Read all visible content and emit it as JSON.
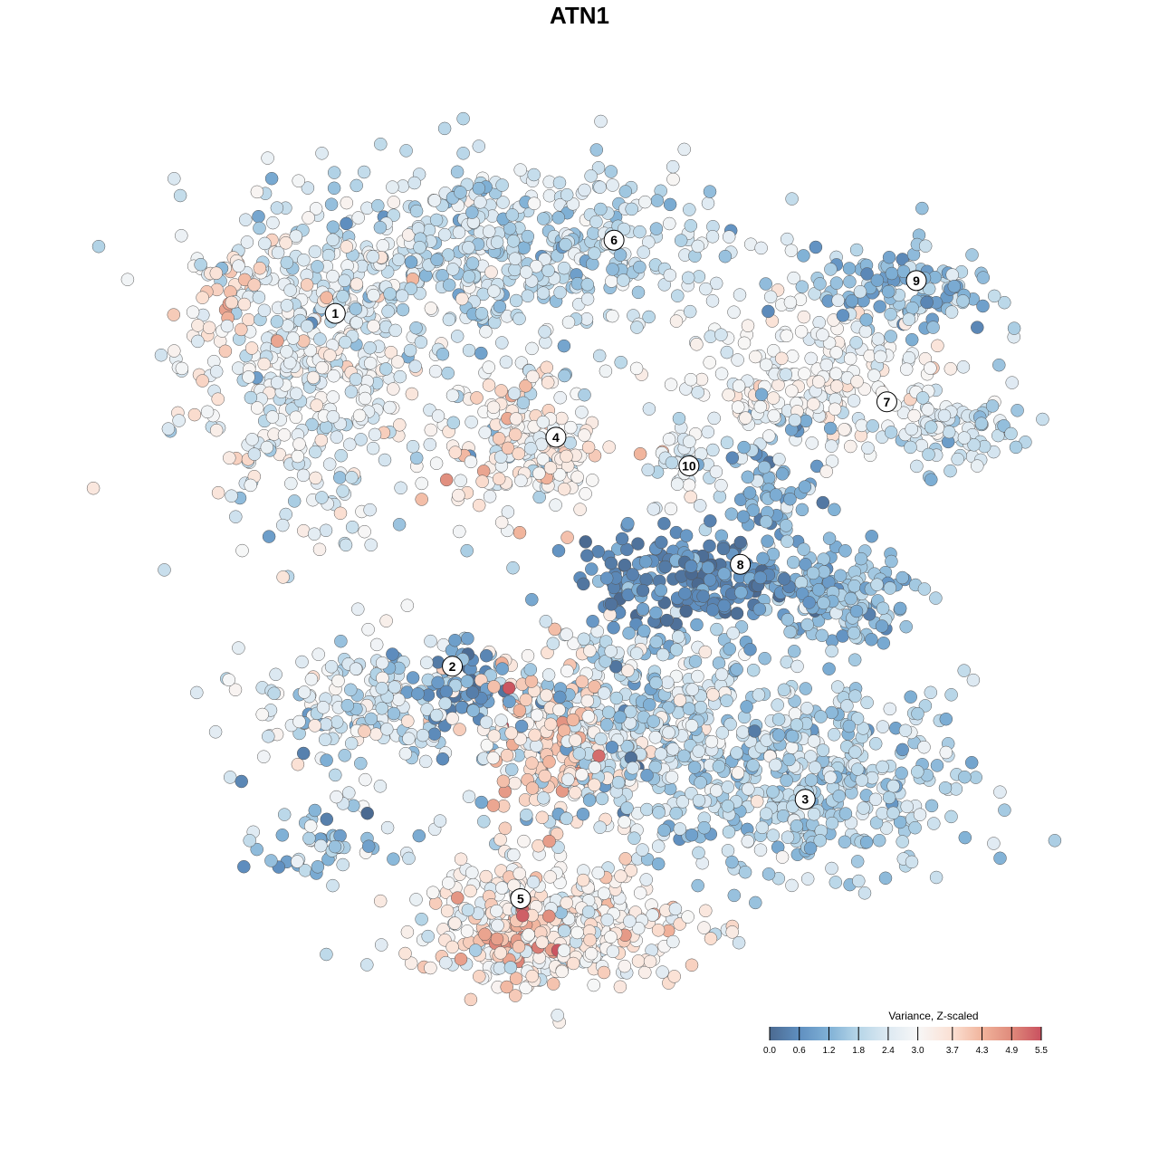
{
  "chart_data": {
    "type": "scatter",
    "title": "ATN1",
    "xlabel": "",
    "ylabel": "",
    "grid": false,
    "xlim": [
      -50,
      50
    ],
    "ylim": [
      -50,
      50
    ],
    "color_variable": "Variance, Z-scaled",
    "legend": {
      "title": "Variance, Z-scaled",
      "placement": "bottom-right",
      "ticks": [
        0.0,
        0.6,
        1.2,
        1.8,
        2.4,
        3.0,
        3.7,
        4.3,
        4.9,
        5.5
      ],
      "tick_labels": [
        "0.0",
        "0.6",
        "1.2",
        "1.8",
        "2.4",
        "3.0",
        "3.7",
        "4.3",
        "4.9",
        "5.5"
      ],
      "colors": [
        "#4b6a91",
        "#5f8fc0",
        "#80b1d6",
        "#b7d6e8",
        "#dde9f2",
        "#f7f7f7",
        "#fbe0d3",
        "#f1b49c",
        "#df8a7b",
        "#c9515f"
      ]
    },
    "point_groups": [
      {
        "cluster": "1",
        "center": [
          -32.3,
          25.8
        ],
        "spread": [
          7.5,
          9.7
        ],
        "n": 450,
        "mean": 2.6,
        "sd": 0.6
      },
      {
        "cluster": "1",
        "center": [
          -42,
          34.4
        ],
        "spread": [
          2.5,
          2.5
        ],
        "n": 25,
        "mean": 3.9,
        "sd": 0.3
      },
      {
        "cluster": "6",
        "center": [
          -8.6,
          38.7
        ],
        "spread": [
          12.9,
          5.4
        ],
        "n": 500,
        "mean": 2.0,
        "sd": 0.5
      },
      {
        "cluster": "4",
        "center": [
          -6.5,
          16.1
        ],
        "spread": [
          4.8,
          4.3
        ],
        "n": 200,
        "mean": 3.0,
        "sd": 0.7
      },
      {
        "cluster": "10",
        "center": [
          12.9,
          13.4
        ],
        "spread": [
          2.2,
          3.2
        ],
        "n": 40,
        "mean": 2.4,
        "sd": 0.4
      },
      {
        "cluster": "7",
        "center": [
          27.9,
          23.7
        ],
        "spread": [
          8.6,
          4.3
        ],
        "n": 220,
        "mean": 2.9,
        "sd": 0.4
      },
      {
        "cluster": "7",
        "center": [
          45,
          17.2
        ],
        "spread": [
          4,
          2.5
        ],
        "n": 80,
        "mean": 2.0,
        "sd": 0.5
      },
      {
        "cluster": "9",
        "center": [
          38.7,
          34.4
        ],
        "spread": [
          5.4,
          2.7
        ],
        "n": 120,
        "mean": 1.4,
        "sd": 0.5
      },
      {
        "cluster": "8",
        "center": [
          12.9,
          0
        ],
        "spread": [
          6.5,
          2.7
        ],
        "n": 200,
        "mean": 0.5,
        "sd": 0.4
      },
      {
        "cluster": "8",
        "center": [
          31.2,
          -2.2
        ],
        "spread": [
          4.3,
          2.7
        ],
        "n": 150,
        "mean": 1.4,
        "sd": 0.4
      },
      {
        "cluster": "8",
        "center": [
          23.7,
          10.8
        ],
        "spread": [
          3.2,
          4.3
        ],
        "n": 80,
        "mean": 1.3,
        "sd": 0.5
      },
      {
        "cluster": "2",
        "center": [
          -25.8,
          -15
        ],
        "spread": [
          6.5,
          4.3
        ],
        "n": 180,
        "mean": 2.3,
        "sd": 0.7
      },
      {
        "cluster": "2",
        "center": [
          -15,
          -12.9
        ],
        "spread": [
          3,
          3
        ],
        "n": 60,
        "mean": 0.7,
        "sd": 0.4
      },
      {
        "cluster": "3",
        "center": [
          27,
          -23.7
        ],
        "spread": [
          9.7,
          5.4
        ],
        "n": 400,
        "mean": 1.8,
        "sd": 0.5
      },
      {
        "cluster": "3",
        "center": [
          6.5,
          -17.2
        ],
        "spread": [
          9.7,
          6.5
        ],
        "n": 450,
        "mean": 2.0,
        "sd": 0.7
      },
      {
        "cluster": "5",
        "center": [
          -4.3,
          -19.4
        ],
        "spread": [
          4.3,
          5.4
        ],
        "n": 150,
        "mean": 3.8,
        "sd": 0.5
      },
      {
        "cluster": "5",
        "center": [
          -3.2,
          -40.9
        ],
        "spread": [
          8.6,
          3.8
        ],
        "n": 400,
        "mean": 3.1,
        "sd": 0.6
      },
      {
        "cluster": "5",
        "center": [
          -6.5,
          -41.9
        ],
        "spread": [
          3,
          2
        ],
        "n": 40,
        "mean": 4.6,
        "sd": 0.4
      },
      {
        "cluster": "2",
        "center": [
          -30,
          -31
        ],
        "spread": [
          4.3,
          2.2
        ],
        "n": 50,
        "mean": 1.5,
        "sd": 0.6
      }
    ],
    "cluster_labels": [
      {
        "label": "1",
        "x": -29.0,
        "y": 31.6
      },
      {
        "label": "6",
        "x": 4.1,
        "y": 40.3
      },
      {
        "label": "4",
        "x": -2.8,
        "y": 16.9
      },
      {
        "label": "10",
        "x": 13.0,
        "y": 13.5
      },
      {
        "label": "7",
        "x": 36.5,
        "y": 21.1
      },
      {
        "label": "9",
        "x": 40.0,
        "y": 35.5
      },
      {
        "label": "8",
        "x": 19.1,
        "y": 1.8
      },
      {
        "label": "2",
        "x": -15.1,
        "y": -10.3
      },
      {
        "label": "3",
        "x": 26.8,
        "y": -26.1
      },
      {
        "label": "5",
        "x": -7.0,
        "y": -37.9
      }
    ]
  }
}
